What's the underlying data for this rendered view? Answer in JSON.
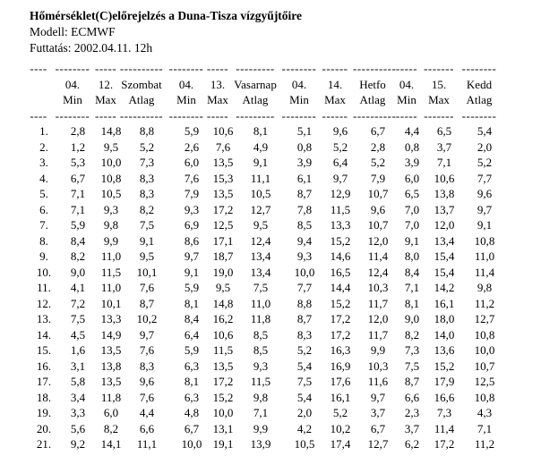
{
  "page": {
    "title": "Hőmérséklet(C)előrejelzés a Duna-Tisza vízgyűjtőire",
    "model_line": "Modell: ECMWF",
    "run_line": "Futtatás: 2002.04.11. 12h"
  },
  "table": {
    "day_header": [
      "",
      "04.",
      "12.",
      "Szombat",
      "04.",
      "13.",
      "Vasarnap",
      "04.",
      "14.",
      "Hetfo",
      "04.",
      "15.",
      "Kedd"
    ],
    "sub_header": [
      "",
      "Min",
      "Max",
      "Atlag",
      "Min",
      "Max",
      "Atlag",
      "Min",
      "Max",
      "Atlag",
      "Min",
      "Max",
      "Atlag"
    ],
    "separator": [
      "----",
      "--------",
      "-----",
      "----------",
      "--------",
      "-----",
      "---------",
      "--------",
      "------",
      "----------",
      "-----",
      "-------",
      "--------"
    ],
    "rows": [
      [
        "1.",
        "2,8",
        "14,8",
        "8,8",
        "5,9",
        "10,6",
        "8,1",
        "5,1",
        "9,6",
        "6,7",
        "4,4",
        "6,5",
        "5,4"
      ],
      [
        "2.",
        "1,2",
        "9,5",
        "5,2",
        "2,6",
        "7,6",
        "4,9",
        "0,8",
        "5,2",
        "2,8",
        "0,8",
        "3,7",
        "2,0"
      ],
      [
        "3.",
        "5,3",
        "10,0",
        "7,3",
        "6,0",
        "13,5",
        "9,1",
        "3,9",
        "6,4",
        "5,2",
        "3,9",
        "7,1",
        "5,2"
      ],
      [
        "4.",
        "6,7",
        "10,8",
        "8,3",
        "7,6",
        "15,3",
        "11,1",
        "6,1",
        "9,7",
        "7,9",
        "6,0",
        "10,6",
        "7,7"
      ],
      [
        "5.",
        "7,1",
        "10,5",
        "8,3",
        "7,9",
        "13,5",
        "10,5",
        "8,7",
        "12,9",
        "10,7",
        "6,5",
        "13,8",
        "9,6"
      ],
      [
        "6.",
        "7,1",
        "9,3",
        "8,2",
        "9,3",
        "17,2",
        "12,7",
        "7,8",
        "11,5",
        "9,6",
        "7,0",
        "13,7",
        "9,7"
      ],
      [
        "7.",
        "5,9",
        "9,8",
        "7,5",
        "6,9",
        "12,5",
        "9,5",
        "8,5",
        "13,3",
        "10,7",
        "7,0",
        "12,0",
        "9,1"
      ],
      [
        "8.",
        "8,4",
        "9,9",
        "9,1",
        "8,6",
        "17,1",
        "12,4",
        "9,4",
        "15,2",
        "12,0",
        "9,1",
        "13,4",
        "10,8"
      ],
      [
        "9.",
        "8,2",
        "11,0",
        "9,5",
        "9,7",
        "18,7",
        "13,4",
        "9,3",
        "14,6",
        "11,4",
        "8,0",
        "15,4",
        "11,0"
      ],
      [
        "10.",
        "9,0",
        "11,5",
        "10,1",
        "9,1",
        "19,0",
        "13,4",
        "10,0",
        "16,5",
        "12,4",
        "8,4",
        "15,4",
        "11,4"
      ],
      [
        "11.",
        "4,1",
        "11,0",
        "7,6",
        "5,9",
        "9,5",
        "7,5",
        "7,7",
        "14,4",
        "10,3",
        "7,1",
        "14,2",
        "9,8"
      ],
      [
        "12.",
        "7,2",
        "10,1",
        "8,7",
        "8,1",
        "14,8",
        "11,0",
        "8,8",
        "15,2",
        "11,7",
        "8,1",
        "16,1",
        "11,2"
      ],
      [
        "13.",
        "7,5",
        "13,3",
        "10,2",
        "8,4",
        "16,2",
        "11,8",
        "8,7",
        "17,2",
        "12,0",
        "9,0",
        "18,0",
        "12,7"
      ],
      [
        "14.",
        "4,5",
        "14,9",
        "9,7",
        "6,4",
        "10,6",
        "8,5",
        "8,3",
        "17,2",
        "11,7",
        "8,2",
        "14,0",
        "10,8"
      ],
      [
        "15.",
        "1,6",
        "13,5",
        "7,6",
        "5,9",
        "11,5",
        "8,5",
        "5,2",
        "16,3",
        "9,9",
        "7,3",
        "13,6",
        "10,0"
      ],
      [
        "16.",
        "3,1",
        "13,8",
        "8,3",
        "6,3",
        "13,5",
        "9,3",
        "5,4",
        "16,9",
        "10,3",
        "7,5",
        "15,2",
        "10,7"
      ],
      [
        "17.",
        "5,8",
        "13,5",
        "9,6",
        "8,1",
        "17,2",
        "11,5",
        "7,5",
        "17,6",
        "11,6",
        "8,7",
        "17,9",
        "12,5"
      ],
      [
        "18.",
        "3,4",
        "11,8",
        "7,6",
        "6,3",
        "15,2",
        "9,8",
        "5,4",
        "16,1",
        "9,7",
        "6,6",
        "16,6",
        "10,8"
      ],
      [
        "19.",
        "3,3",
        "6,0",
        "4,4",
        "4,8",
        "10,0",
        "7,1",
        "2,0",
        "5,2",
        "3,7",
        "2,3",
        "7,3",
        "4,3"
      ],
      [
        "20.",
        "5,6",
        "8,2",
        "6,6",
        "6,7",
        "13,1",
        "9,9",
        "4,2",
        "10,2",
        "6,7",
        "3,7",
        "11,4",
        "7,1"
      ],
      [
        "21.",
        "9,2",
        "14,1",
        "11,1",
        "10,0",
        "19,1",
        "13,9",
        "10,5",
        "17,4",
        "12,7",
        "6,2",
        "17,2",
        "11,2"
      ]
    ]
  }
}
